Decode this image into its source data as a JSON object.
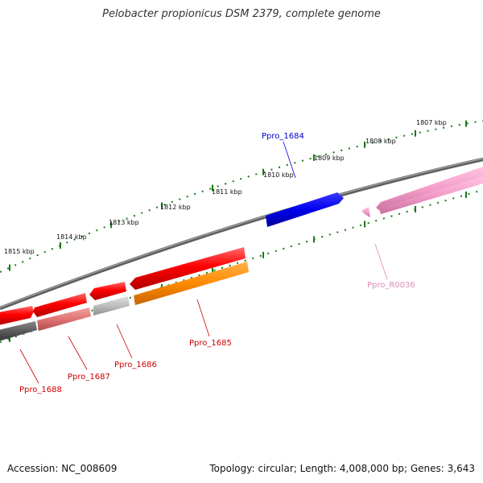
{
  "title": "Pelobacter propionicus DSM 2379, complete genome",
  "footer": {
    "accession": "Accession: NC_008609",
    "stats": "Topology: circular; Length: 4,008,000 bp; Genes: 3,643"
  },
  "colors": {
    "backbone": "#777777",
    "tick": "#1a7a1a",
    "red_gene": "#ff0000",
    "blue_gene": "#0000e0",
    "orange_gene": "#ff8800",
    "pink_gene": "#f090c0",
    "grey_gene": "#bbbbbb",
    "darkgrey_gene": "#555555",
    "salmon_gene": "#e07070"
  },
  "scale_labels": [
    {
      "kbp": 1815,
      "text": "1815 kbp"
    },
    {
      "kbp": 1814,
      "text": "1814 kbp"
    },
    {
      "kbp": 1813,
      "text": "1813 kbp"
    },
    {
      "kbp": 1812,
      "text": "1812 kbp"
    },
    {
      "kbp": 1811,
      "text": "1811 kbp"
    },
    {
      "kbp": 1810,
      "text": "1810 kbp"
    },
    {
      "kbp": 1809,
      "text": "1809 kbp"
    },
    {
      "kbp": 1808,
      "text": "1808 kbp"
    },
    {
      "kbp": 1807,
      "text": "1807 kbp"
    }
  ],
  "gene_labels": [
    {
      "id": "ppro-1684",
      "text": "Ppro_1684",
      "color": "#0000cc"
    },
    {
      "id": "ppro-1685",
      "text": "Ppro_1685",
      "color": "#cc0000"
    },
    {
      "id": "ppro-1686",
      "text": "Ppro_1686",
      "color": "#cc0000"
    },
    {
      "id": "ppro-1687",
      "text": "Ppro_1687",
      "color": "#cc0000"
    },
    {
      "id": "ppro-1688",
      "text": "Ppro_1688",
      "color": "#cc0000"
    },
    {
      "id": "ppro-r0036",
      "text": "Ppro_R0036",
      "color": "#e088b8"
    }
  ]
}
